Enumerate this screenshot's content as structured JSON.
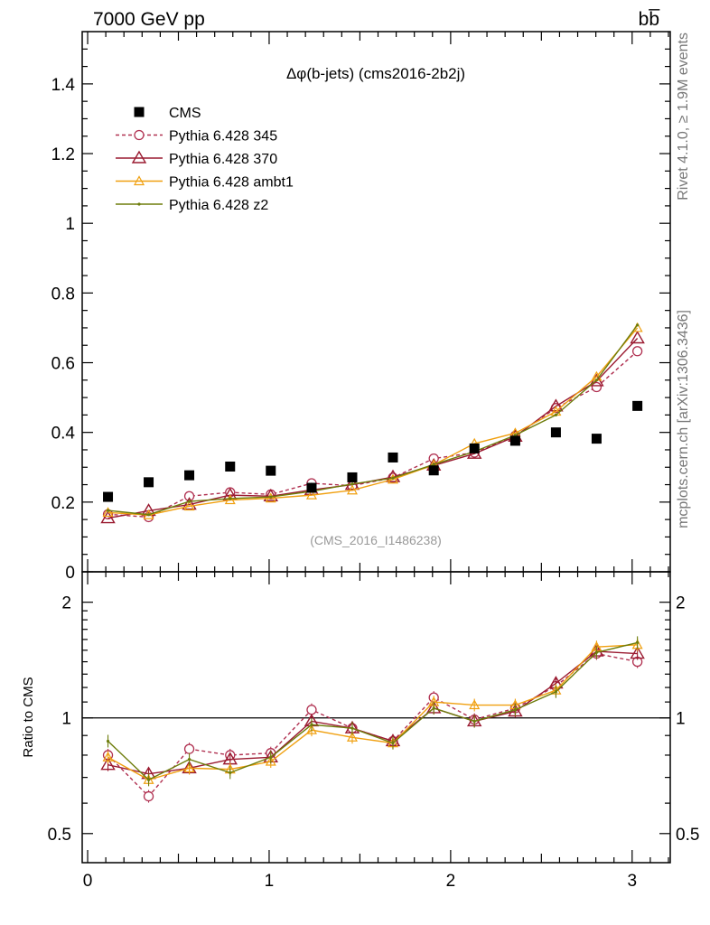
{
  "header": {
    "energy_label": "7000 GeV pp",
    "process_label": "bb̅",
    "side_top": "Rivet 4.1.0, ≥ 1.9M events",
    "side_bottom": "mcplots.cern.ch [arXiv:1306.3436]"
  },
  "chart_data": [
    {
      "type": "line",
      "title": "Δφ(b-jets) (cms2016-2b2j)",
      "watermark": "(CMS_2016_I1486238)",
      "xlabel": "",
      "ylabel": "",
      "xlim": [
        -0.03,
        3.21
      ],
      "ylim": [
        0,
        1.55
      ],
      "y_ticks": [
        0,
        0.2,
        0.4,
        0.6,
        0.8,
        1,
        1.2,
        1.4
      ],
      "y_tick_labels": [
        "0",
        "0.2",
        "0.4",
        "0.6",
        "0.8",
        "1",
        "1.2",
        "1.4"
      ],
      "x": [
        0.112,
        0.336,
        0.56,
        0.785,
        1.009,
        1.234,
        1.458,
        1.682,
        1.907,
        2.131,
        2.356,
        2.58,
        2.804,
        3.029
      ],
      "legend": [
        "CMS",
        "Pythia 6.428 345",
        "Pythia 6.428 370",
        "Pythia 6.428 ambt1",
        "Pythia 6.428 z2"
      ],
      "series": [
        {
          "name": "CMS",
          "color": "#000000",
          "values": [
            0.215,
            0.257,
            0.277,
            0.302,
            0.29,
            0.241,
            0.271,
            0.328,
            0.291,
            0.354,
            0.376,
            0.4,
            0.382,
            0.476
          ]
        },
        {
          "name": "Pythia 6.428 345",
          "color": "#b03050",
          "values": [
            0.165,
            0.157,
            0.217,
            0.228,
            0.222,
            0.254,
            0.247,
            0.27,
            0.325,
            0.342,
            0.39,
            0.47,
            0.53,
            0.633
          ]
        },
        {
          "name": "Pythia 6.428 370",
          "color": "#9a1a30",
          "values": [
            0.154,
            0.175,
            0.193,
            0.22,
            0.217,
            0.235,
            0.25,
            0.272,
            0.305,
            0.339,
            0.388,
            0.475,
            0.547,
            0.67
          ]
        },
        {
          "name": "Pythia 6.428 ambt1",
          "color": "#f0a010",
          "values": [
            0.17,
            0.163,
            0.188,
            0.206,
            0.211,
            0.22,
            0.234,
            0.265,
            0.307,
            0.368,
            0.398,
            0.46,
            0.56,
            0.7
          ]
        },
        {
          "name": "Pythia 6.428 z2",
          "color": "#6e7d0c",
          "values": [
            0.176,
            0.164,
            0.202,
            0.21,
            0.215,
            0.231,
            0.252,
            0.269,
            0.308,
            0.345,
            0.392,
            0.45,
            0.55,
            0.708
          ]
        }
      ]
    },
    {
      "type": "line",
      "title": "",
      "xlabel": "",
      "ylabel": "Ratio to CMS",
      "xlim": [
        -0.03,
        3.21
      ],
      "ylim": [
        0.42,
        2.4
      ],
      "y_scale": "log",
      "x_ticks": [
        0,
        1,
        2,
        3
      ],
      "x_tick_labels": [
        "0",
        "1",
        "2",
        "3"
      ],
      "y_ticks": [
        0.5,
        1,
        2
      ],
      "y_tick_labels": [
        "0.5",
        "1",
        "2"
      ],
      "reference_line": 1,
      "x": [
        0.112,
        0.336,
        0.56,
        0.785,
        1.009,
        1.234,
        1.458,
        1.682,
        1.907,
        2.131,
        2.356,
        2.58,
        2.804,
        3.029
      ],
      "series": [
        {
          "name": "Pythia 6.428 345",
          "color": "#b03050",
          "values": [
            0.8,
            0.625,
            0.83,
            0.8,
            0.81,
            1.05,
            0.94,
            0.87,
            1.13,
            0.99,
            1.06,
            1.21,
            1.47,
            1.4
          ]
        },
        {
          "name": "Pythia 6.428 370",
          "color": "#9a1a30",
          "values": [
            0.755,
            0.715,
            0.74,
            0.78,
            0.79,
            0.98,
            0.94,
            0.87,
            1.06,
            0.98,
            1.04,
            1.23,
            1.49,
            1.47
          ]
        },
        {
          "name": "Pythia 6.428 ambt1",
          "color": "#f0a010",
          "values": [
            0.79,
            0.69,
            0.74,
            0.735,
            0.77,
            0.93,
            0.89,
            0.86,
            1.1,
            1.08,
            1.08,
            1.18,
            1.53,
            1.55
          ]
        },
        {
          "name": "Pythia 6.428 z2",
          "color": "#6e7d0c",
          "values": [
            0.87,
            0.69,
            0.78,
            0.72,
            0.79,
            0.96,
            0.94,
            0.86,
            1.06,
            0.98,
            1.05,
            1.17,
            1.48,
            1.57
          ]
        }
      ]
    }
  ]
}
